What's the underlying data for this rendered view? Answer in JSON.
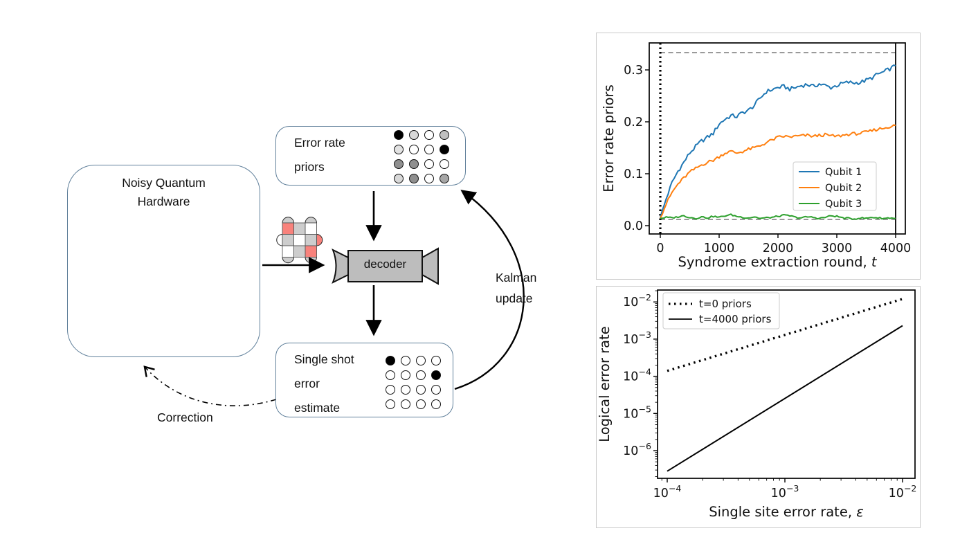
{
  "colors": {
    "box_border": "#5f7f9a",
    "panel_border": "#c9c9c9",
    "lattice_red": "#f8827c",
    "lattice_gray": "#cdcdcd",
    "lattice_white": "#ffffff",
    "decoder_fill": "#bdbdbd",
    "dashed_reference": "#8c8c8c",
    "qubit1": "#1f77b4",
    "qubit2": "#ff7f0e",
    "qubit3": "#2ca02c"
  },
  "diagram": {
    "hardware_box": {
      "title": [
        "Noisy Quantum",
        "Hardware"
      ]
    },
    "lattice": {
      "cells": [
        [
          "red",
          "gray",
          "white"
        ],
        [
          "gray",
          "white",
          "gray"
        ],
        [
          "white",
          "gray",
          "red"
        ]
      ],
      "bumps_top": [
        "gray",
        null,
        "gray"
      ],
      "bumps_bottom": [
        "gray",
        null,
        "gray"
      ],
      "bumps_left": [
        null,
        "white",
        null
      ],
      "bumps_right": [
        null,
        "red",
        null
      ],
      "error_bolt_count": 2
    },
    "decoder": {
      "label": "decoder"
    },
    "priors_box": {
      "label": [
        "Error rate",
        "priors"
      ],
      "dot_shades": [
        [
          "#000000",
          "#d8d8d8",
          "#ffffff",
          "#c0c0c0"
        ],
        [
          "#e2e2e2",
          "#ffffff",
          "#ffffff",
          "#000000"
        ],
        [
          "#8f8f8f",
          "#8f8f8f",
          "#ffffff",
          "#ffffff"
        ],
        [
          "#d8d8d8",
          "#8f8f8f",
          "#ffffff",
          "#a6a6a6"
        ]
      ]
    },
    "estimate_box": {
      "label": [
        "Single shot",
        "error",
        "estimate"
      ],
      "dot_shades": [
        [
          "#000000",
          "#ffffff",
          "#ffffff",
          "#ffffff"
        ],
        [
          "#ffffff",
          "#ffffff",
          "#ffffff",
          "#000000"
        ],
        [
          "#ffffff",
          "#ffffff",
          "#ffffff",
          "#ffffff"
        ],
        [
          "#ffffff",
          "#ffffff",
          "#ffffff",
          "#ffffff"
        ]
      ]
    },
    "kalman_label": [
      "Kalman",
      "update"
    ],
    "correction_label": "Correction"
  },
  "chart_data": [
    {
      "type": "line",
      "xlabel_main": "Syndrome extraction round, ",
      "xlabel_italic": "t",
      "ylabel": "Error rate priors",
      "xlim": [
        -215,
        4180
      ],
      "ylim": [
        -0.016,
        0.352
      ],
      "xticks": [
        0,
        1000,
        2000,
        3000,
        4000
      ],
      "yticks": [
        0.0,
        0.1,
        0.2,
        0.3
      ],
      "grid": false,
      "legend_position": "center right",
      "hlines_dashed": [
        0.3333,
        0.012
      ],
      "vline_dotted_x": 0,
      "vline_solid_x": 4000,
      "x_step": 100,
      "series": [
        {
          "name": "Qubit 1",
          "color": "#1f77b4",
          "jitter": 0.004,
          "values": [
            0.015,
            0.052,
            0.083,
            0.105,
            0.122,
            0.14,
            0.152,
            0.163,
            0.17,
            0.178,
            0.196,
            0.205,
            0.212,
            0.21,
            0.218,
            0.222,
            0.232,
            0.246,
            0.258,
            0.262,
            0.266,
            0.268,
            0.263,
            0.266,
            0.27,
            0.272,
            0.268,
            0.273,
            0.27,
            0.266,
            0.27,
            0.274,
            0.276,
            0.275,
            0.276,
            0.28,
            0.285,
            0.292,
            0.296,
            0.302,
            0.308
          ]
        },
        {
          "name": "Qubit 2",
          "color": "#ff7f0e",
          "jitter": 0.003,
          "values": [
            0.015,
            0.042,
            0.064,
            0.08,
            0.092,
            0.103,
            0.11,
            0.117,
            0.122,
            0.126,
            0.133,
            0.14,
            0.143,
            0.14,
            0.143,
            0.147,
            0.15,
            0.154,
            0.16,
            0.165,
            0.17,
            0.172,
            0.171,
            0.172,
            0.173,
            0.174,
            0.172,
            0.174,
            0.175,
            0.173,
            0.172,
            0.174,
            0.176,
            0.177,
            0.178,
            0.18,
            0.183,
            0.186,
            0.188,
            0.191,
            0.193
          ]
        },
        {
          "name": "Qubit 3",
          "color": "#2ca02c",
          "jitter": 0.0015,
          "values": [
            0.014,
            0.016,
            0.015,
            0.017,
            0.019,
            0.016,
            0.014,
            0.017,
            0.015,
            0.018,
            0.016,
            0.019,
            0.021,
            0.018,
            0.016,
            0.015,
            0.017,
            0.014,
            0.015,
            0.016,
            0.018,
            0.02,
            0.019,
            0.016,
            0.015,
            0.017,
            0.016,
            0.014,
            0.016,
            0.019,
            0.018,
            0.015,
            0.014,
            0.013,
            0.015,
            0.014,
            0.016,
            0.015,
            0.014,
            0.015,
            0.014
          ]
        }
      ]
    },
    {
      "type": "line",
      "xscale": "log",
      "yscale": "log",
      "xlabel_main": "Single site error rate, ",
      "xlabel_italic": "ε",
      "ylabel": "Logical error rate",
      "xtick_exponents": [
        -4,
        -3,
        -2
      ],
      "ytick_exponents": [
        -2,
        -3,
        -4,
        -5,
        -6
      ],
      "xlim_exponents": [
        -4.08,
        -1.89
      ],
      "ylim_exponents": [
        -6.74,
        -1.72
      ],
      "legend_position": "upper left",
      "series": [
        {
          "name": "t=0 priors",
          "linestyle": "dotted",
          "color": "#000000",
          "x": [
            0.0001,
            0.01
          ],
          "y": [
            0.00014,
            0.012
          ]
        },
        {
          "name": "t=4000 priors",
          "linestyle": "solid",
          "color": "#000000",
          "x": [
            0.0001,
            0.01
          ],
          "y": [
            2.8e-07,
            0.0023
          ]
        }
      ]
    }
  ]
}
